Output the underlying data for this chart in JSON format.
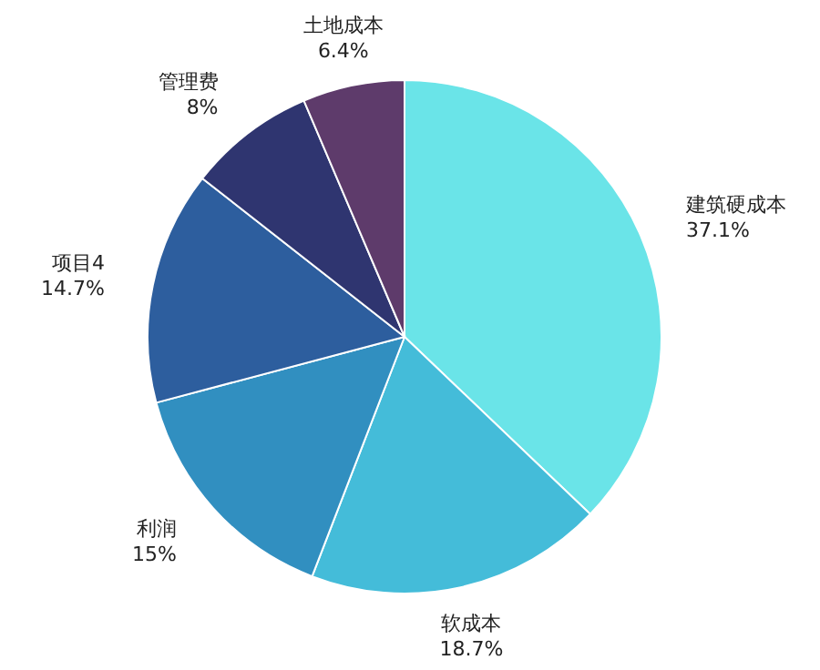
{
  "chart_data": {
    "type": "pie",
    "categories": [
      "建筑硬成本",
      "软成本",
      "利润",
      "项目4",
      "管理费",
      "土地成本"
    ],
    "values": [
      37.1,
      18.7,
      15,
      14.7,
      8,
      6.4
    ],
    "value_labels": [
      "37.1%",
      "18.7%",
      "15%",
      "14.7%",
      "8%",
      "6.4%"
    ],
    "colors": [
      "#6ae4e8",
      "#44bcd9",
      "#318fc0",
      "#2d5e9e",
      "#2f3570",
      "#5e3b6b"
    ]
  }
}
